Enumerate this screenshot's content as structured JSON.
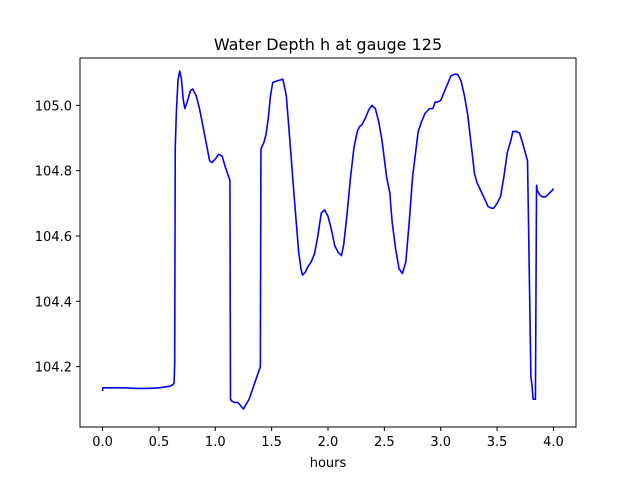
{
  "chart_data": {
    "type": "line",
    "title": "Water Depth h at gauge 125",
    "xlabel": "hours",
    "ylabel": "",
    "xlim": [
      -0.2,
      4.2
    ],
    "ylim": [
      104.015,
      105.145
    ],
    "xticks": [
      "0.0",
      "0.5",
      "1.0",
      "1.5",
      "2.0",
      "2.5",
      "3.0",
      "3.5",
      "4.0"
    ],
    "xtick_values": [
      0.0,
      0.5,
      1.0,
      1.5,
      2.0,
      2.5,
      3.0,
      3.5,
      4.0
    ],
    "yticks": [
      "104.2",
      "104.4",
      "104.6",
      "104.8",
      "105.0"
    ],
    "ytick_values": [
      104.2,
      104.4,
      104.6,
      104.8,
      105.0
    ],
    "grid": false,
    "legend": "none",
    "series": [
      {
        "color": "#0000ff",
        "x": [
          0.0,
          0.003,
          0.1,
          0.2,
          0.3,
          0.4,
          0.5,
          0.6,
          0.625,
          0.635,
          0.64,
          0.645,
          0.655,
          0.67,
          0.685,
          0.7,
          0.715,
          0.73,
          0.75,
          0.78,
          0.8,
          0.83,
          0.86,
          0.9,
          0.95,
          0.97,
          1.0,
          1.03,
          1.06,
          1.09,
          1.13,
          1.135,
          1.145,
          1.17,
          1.2,
          1.25,
          1.3,
          1.35,
          1.4,
          1.405,
          1.415,
          1.43,
          1.45,
          1.47,
          1.49,
          1.51,
          1.55,
          1.6,
          1.63,
          1.66,
          1.7,
          1.74,
          1.76,
          1.77,
          1.775,
          1.8,
          1.82,
          1.85,
          1.88,
          1.91,
          1.94,
          1.97,
          2.0,
          2.03,
          2.06,
          2.09,
          2.12,
          2.14,
          2.17,
          2.2,
          2.23,
          2.26,
          2.28,
          2.3,
          2.33,
          2.36,
          2.39,
          2.42,
          2.45,
          2.48,
          2.52,
          2.55,
          2.555,
          2.56,
          2.57,
          2.6,
          2.63,
          2.66,
          2.69,
          2.72,
          2.75,
          2.8,
          2.83,
          2.86,
          2.9,
          2.93,
          2.95,
          2.97,
          3.0,
          3.03,
          3.06,
          3.09,
          3.12,
          3.15,
          3.18,
          3.21,
          3.24,
          3.27,
          3.3,
          3.32,
          3.34,
          3.36,
          3.38,
          3.4,
          3.42,
          3.45,
          3.47,
          3.5,
          3.53,
          3.56,
          3.59,
          3.62,
          3.64,
          3.67,
          3.7,
          3.73,
          3.77,
          3.8,
          3.81,
          3.815,
          3.82,
          3.84,
          3.85,
          3.852,
          3.855,
          3.88,
          3.9,
          3.93,
          3.96,
          3.99,
          4.0
        ],
        "y": [
          104.125,
          104.135,
          104.135,
          104.135,
          104.133,
          104.133,
          104.135,
          104.14,
          104.145,
          104.15,
          104.21,
          104.87,
          104.98,
          105.08,
          105.105,
          105.08,
          105.02,
          104.99,
          105.01,
          105.045,
          105.05,
          105.03,
          104.99,
          104.92,
          104.83,
          104.825,
          104.835,
          104.85,
          104.845,
          104.81,
          104.77,
          104.1,
          104.095,
          104.09,
          104.09,
          104.07,
          104.1,
          104.15,
          104.2,
          104.865,
          104.875,
          104.885,
          104.91,
          104.96,
          105.03,
          105.07,
          105.075,
          105.08,
          105.03,
          104.9,
          104.72,
          104.55,
          104.5,
          104.485,
          104.48,
          104.49,
          104.505,
          104.52,
          104.545,
          104.6,
          104.67,
          104.68,
          104.66,
          104.62,
          104.57,
          104.55,
          104.54,
          104.575,
          104.67,
          104.78,
          104.87,
          104.92,
          104.935,
          104.94,
          104.96,
          104.985,
          105.0,
          104.99,
          104.95,
          104.89,
          104.78,
          104.73,
          104.7,
          104.68,
          104.64,
          104.56,
          104.5,
          104.485,
          104.52,
          104.64,
          104.78,
          104.92,
          104.95,
          104.975,
          104.99,
          104.99,
          105.01,
          105.01,
          105.015,
          105.04,
          105.065,
          105.09,
          105.095,
          105.095,
          105.075,
          105.03,
          104.97,
          104.88,
          104.79,
          104.765,
          104.75,
          104.735,
          104.72,
          104.705,
          104.69,
          104.685,
          104.685,
          104.7,
          104.72,
          104.78,
          104.855,
          104.89,
          104.92,
          104.92,
          104.915,
          104.88,
          104.83,
          104.17,
          104.14,
          104.12,
          104.1,
          104.1,
          104.755,
          104.75,
          104.74,
          104.725,
          104.72,
          104.72,
          104.73,
          104.74,
          104.745
        ]
      }
    ]
  }
}
